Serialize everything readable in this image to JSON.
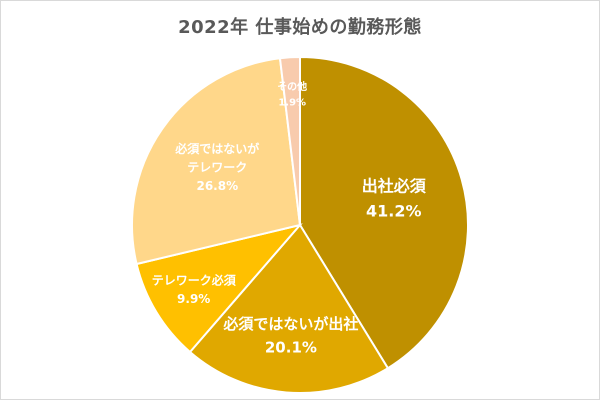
{
  "chart_data": {
    "type": "pie",
    "title": "2022年 仕事始めの勤務形態",
    "slices": [
      {
        "label": "出社必須",
        "value": 41.2,
        "value_label": "41.2%",
        "color": "#BF9000",
        "text_color": "#ffffff"
      },
      {
        "label": "必須ではないが出社",
        "value": 20.1,
        "value_label": "20.1%",
        "color": "#E0A800",
        "text_color": "#ffffff"
      },
      {
        "label": "テレワーク必須",
        "value": 9.9,
        "value_label": "9.9%",
        "color": "#FFC000",
        "text_color": "#ffffff"
      },
      {
        "label": "必須ではないがテレワーク",
        "value": 26.8,
        "value_label": "26.8%",
        "color": "#FFD78A",
        "text_color": "#ffffff"
      },
      {
        "label": "その他",
        "value": 1.9,
        "value_label": "1.9%",
        "color": "#F8CBAD",
        "text_color": "#ffffff"
      }
    ]
  }
}
